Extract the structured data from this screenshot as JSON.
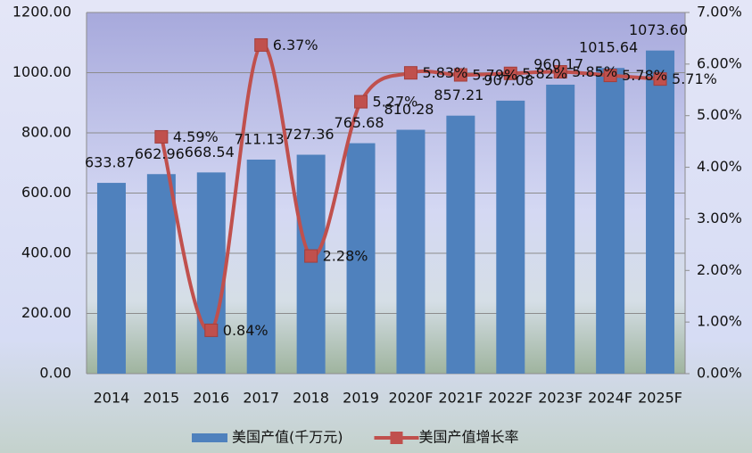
{
  "chart_data": {
    "type": "combo",
    "categories": [
      "2014",
      "2015",
      "2016",
      "2017",
      "2018",
      "2019",
      "2020F",
      "2021F",
      "2022F",
      "2023F",
      "2024F",
      "2025F"
    ],
    "series": [
      {
        "name": "美国产值(千万元)",
        "type": "bar",
        "color": "#4f81bd",
        "values": [
          633.87,
          662.96,
          668.54,
          711.13,
          727.36,
          765.68,
          810.28,
          857.21,
          907.08,
          960.17,
          1015.64,
          1073.6
        ],
        "value_labels": [
          "633.87",
          "662.96",
          "668.54",
          "711.13",
          "727.36",
          "765.68",
          "810.28",
          "857.21",
          "907.08",
          "960.17",
          "1015.64",
          "1073.60"
        ]
      },
      {
        "name": "美国产值增长率",
        "type": "line",
        "axis": "y2",
        "color": "#c0504d",
        "values": [
          null,
          4.59,
          0.84,
          6.37,
          2.28,
          5.27,
          5.83,
          5.79,
          5.82,
          5.85,
          5.78,
          5.71
        ],
        "value_labels": [
          null,
          "4.59%",
          "0.84%",
          "6.37%",
          "2.28%",
          "5.27%",
          "5.83%",
          "5.79%",
          "5.82%",
          "5.85%",
          "5.78%",
          "5.71%"
        ]
      }
    ],
    "ylim": [
      0,
      1200
    ],
    "yticks": [
      {
        "value": 0,
        "label": "0.00"
      },
      {
        "value": 200,
        "label": "200.00"
      },
      {
        "value": 400,
        "label": "400.00"
      },
      {
        "value": 600,
        "label": "600.00"
      },
      {
        "value": 800,
        "label": "800.00"
      },
      {
        "value": 1000,
        "label": "1000.00"
      },
      {
        "value": 1200,
        "label": "1200.00"
      }
    ],
    "y2lim": [
      0,
      7
    ],
    "y2ticks": [
      {
        "value": 0,
        "label": "0.00%"
      },
      {
        "value": 1,
        "label": "1.00%"
      },
      {
        "value": 2,
        "label": "2.00%"
      },
      {
        "value": 3,
        "label": "3.00%"
      },
      {
        "value": 4,
        "label": "4.00%"
      },
      {
        "value": 5,
        "label": "5.00%"
      },
      {
        "value": 6,
        "label": "6.00%"
      },
      {
        "value": 7,
        "label": "7.00%"
      }
    ],
    "grid": true,
    "legend": "bottom"
  }
}
